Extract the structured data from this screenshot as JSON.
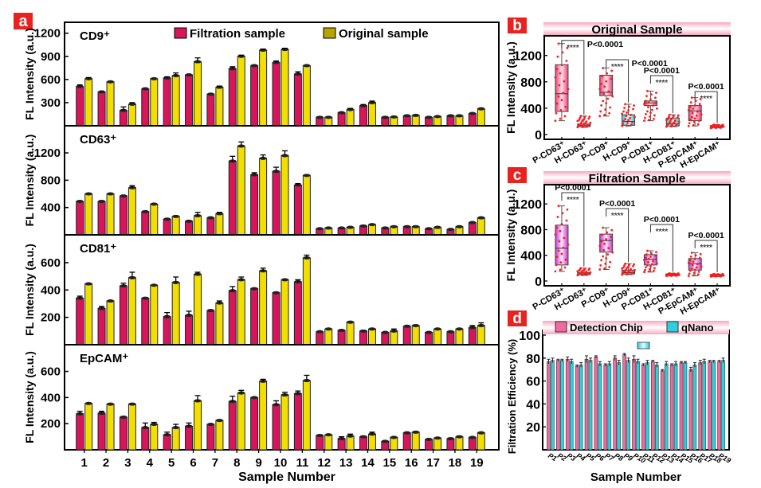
{
  "figure": {
    "panel_letters": [
      "a",
      "b",
      "c",
      "d"
    ],
    "panel_letter_color": "#e8231f"
  },
  "chart_data": [
    {
      "panel": "a",
      "type": "bar",
      "xlabel": "Sample Number",
      "ylabel": "FL Intensity (a.u.)",
      "categories": [
        "1",
        "2",
        "3",
        "4",
        "5",
        "6",
        "7",
        "8",
        "9",
        "10",
        "11",
        "12",
        "13",
        "14",
        "15",
        "16",
        "17",
        "18",
        "19"
      ],
      "legend": [
        {
          "name": "Filtration sample",
          "color": "#d8145a"
        },
        {
          "name": "Original sample",
          "color": "#f2de00"
        }
      ],
      "legend_position": "top",
      "subplots": [
        {
          "title": "CD9⁺",
          "ylim": [
            0,
            1300
          ],
          "yticks": [
            300,
            600,
            900,
            1200
          ],
          "series": [
            {
              "name": "Filtration sample",
              "values": [
                510,
                440,
                200,
                480,
                620,
                660,
                410,
                740,
                780,
                820,
                670,
                110,
                170,
                260,
                110,
                130,
                110,
                130,
                160
              ],
              "errors": [
                20,
                10,
                45,
                10,
                15,
                10,
                10,
                25,
                10,
                20,
                30,
                10,
                10,
                15,
                10,
                10,
                10,
                10,
                10
              ]
            },
            {
              "name": "Original sample",
              "values": [
                610,
                570,
                280,
                610,
                650,
                830,
                500,
                900,
                980,
                990,
                780,
                110,
                210,
                300,
                115,
                135,
                120,
                130,
                220
              ],
              "errors": [
                15,
                10,
                20,
                10,
                35,
                50,
                15,
                15,
                15,
                15,
                10,
                10,
                15,
                20,
                10,
                10,
                10,
                10,
                10
              ]
            }
          ]
        },
        {
          "title": "CD63⁺",
          "ylim": [
            0,
            1550
          ],
          "yticks": [
            400,
            800,
            1200
          ],
          "series": [
            {
              "name": "Filtration sample",
              "values": [
                490,
                490,
                570,
                340,
                230,
                200,
                250,
                1080,
                880,
                930,
                730,
                90,
                100,
                130,
                100,
                120,
                90,
                80,
                180
              ],
              "errors": [
                10,
                10,
                10,
                10,
                10,
                10,
                10,
                70,
                30,
                60,
                20,
                10,
                10,
                10,
                10,
                10,
                10,
                10,
                10
              ]
            },
            {
              "name": "Original sample",
              "values": [
                600,
                600,
                690,
                450,
                270,
                280,
                310,
                1300,
                1120,
                1160,
                870,
                100,
                110,
                150,
                120,
                120,
                110,
                120,
                250
              ],
              "errors": [
                10,
                10,
                30,
                10,
                10,
                50,
                20,
                60,
                50,
                70,
                10,
                10,
                10,
                10,
                10,
                10,
                10,
                10,
                10
              ]
            }
          ]
        },
        {
          "title": "CD81⁺",
          "ylim": [
            0,
            780
          ],
          "yticks": [
            200,
            400,
            600
          ],
          "series": [
            {
              "name": "Filtration sample",
              "values": [
                340,
                265,
                430,
                340,
                205,
                215,
                250,
                395,
                410,
                380,
                460,
                95,
                105,
                100,
                90,
                135,
                90,
                95,
                125
              ],
              "errors": [
                15,
                15,
                20,
                5,
                30,
                30,
                5,
                30,
                10,
                5,
                15,
                10,
                10,
                10,
                10,
                10,
                10,
                10,
                15
              ]
            },
            {
              "name": "Original sample",
              "values": [
                445,
                320,
                490,
                435,
                455,
                515,
                305,
                475,
                540,
                475,
                635,
                115,
                165,
                115,
                100,
                140,
                115,
                115,
                140
              ],
              "errors": [
                5,
                5,
                40,
                5,
                40,
                15,
                15,
                20,
                20,
                5,
                20,
                10,
                10,
                10,
                15,
                10,
                10,
                10,
                20
              ]
            }
          ]
        },
        {
          "title": "EpCAM⁺",
          "ylim": [
            0,
            780
          ],
          "yticks": [
            200,
            400,
            600
          ],
          "series": [
            {
              "name": "Filtration sample",
              "values": [
                275,
                280,
                250,
                170,
                115,
                180,
                195,
                370,
                400,
                345,
                430,
                110,
                85,
                100,
                65,
                130,
                80,
                85,
                95
              ],
              "errors": [
                20,
                15,
                10,
                35,
                20,
                25,
                5,
                40,
                5,
                30,
                20,
                10,
                15,
                10,
                10,
                10,
                10,
                10,
                10
              ]
            },
            {
              "name": "Original sample",
              "values": [
                355,
                350,
                350,
                195,
                170,
                375,
                225,
                435,
                525,
                420,
                530,
                115,
                105,
                120,
                95,
                135,
                90,
                100,
                130
              ],
              "errors": [
                10,
                10,
                10,
                15,
                25,
                40,
                5,
                20,
                15,
                20,
                40,
                10,
                15,
                15,
                10,
                10,
                10,
                10,
                10
              ]
            }
          ]
        }
      ]
    },
    {
      "panel": "b",
      "type": "box",
      "title": "Original Sample",
      "ylabel": "FL Intensity (a.u.)",
      "ylim": [
        0,
        1450
      ],
      "yticks": [
        0,
        400,
        800,
        1200
      ],
      "categories": [
        "P-CD63⁺",
        "H-CD63⁺",
        "P-CD9⁺",
        "H-CD9⁺",
        "P-CD81⁺",
        "H-CD81⁺",
        "P-EpCAM⁺",
        "H-EpCAM⁺"
      ],
      "boxes": [
        {
          "q1": 350,
          "median": 620,
          "q3": 1060,
          "min": 210,
          "max": 1380,
          "color": "#e8447a"
        },
        {
          "q1": 120,
          "median": 140,
          "q3": 160,
          "min": 110,
          "max": 280,
          "color": "#e8447a"
        },
        {
          "q1": 590,
          "median": 640,
          "q3": 900,
          "min": 280,
          "max": 1010,
          "color": "#e8447a"
        },
        {
          "q1": 140,
          "median": 200,
          "q3": 300,
          "min": 130,
          "max": 460,
          "color": "#2fc8d8"
        },
        {
          "q1": 440,
          "median": 480,
          "q3": 510,
          "min": 210,
          "max": 660,
          "color": "#e8447a"
        },
        {
          "q1": 130,
          "median": 160,
          "q3": 250,
          "min": 120,
          "max": 300,
          "color": "#2fc8d8"
        },
        {
          "q1": 210,
          "median": 360,
          "q3": 440,
          "min": 130,
          "max": 560,
          "color": "#e8447a"
        },
        {
          "q1": 110,
          "median": 120,
          "q3": 135,
          "min": 100,
          "max": 150,
          "color": "#e8447a"
        }
      ],
      "comparisons": [
        {
          "pair": [
            0,
            1
          ],
          "stars": "****",
          "p": "P<0.0001"
        },
        {
          "pair": [
            2,
            3
          ],
          "stars": "****",
          "p": "P<0.0001"
        },
        {
          "pair": [
            4,
            5
          ],
          "stars": "****",
          "p": "P<0.0001"
        },
        {
          "pair": [
            6,
            7
          ],
          "stars": "****",
          "p": "P<0.0001"
        }
      ]
    },
    {
      "panel": "c",
      "type": "box",
      "title": "Filtration Sample",
      "ylabel": "FL Intensity (a.u.)",
      "ylim": [
        0,
        1450
      ],
      "yticks": [
        0,
        400,
        800,
        1200
      ],
      "categories": [
        "P-CD63⁺",
        "H-CD63⁺",
        "P-CD9⁺",
        "H-CD9⁺",
        "P-CD81⁺",
        "H-CD81⁺",
        "P-EpCAM⁺",
        "H-EpCAM⁺"
      ],
      "boxes": [
        {
          "q1": 250,
          "median": 510,
          "q3": 870,
          "min": 150,
          "max": 1170,
          "color": "#c03cc8"
        },
        {
          "q1": 100,
          "median": 110,
          "q3": 130,
          "min": 90,
          "max": 200,
          "color": "#c03cc8"
        },
        {
          "q1": 450,
          "median": 630,
          "q3": 730,
          "min": 180,
          "max": 830,
          "color": "#c03cc8"
        },
        {
          "q1": 110,
          "median": 130,
          "q3": 170,
          "min": 100,
          "max": 270,
          "color": "#c03cc8"
        },
        {
          "q1": 250,
          "median": 340,
          "q3": 410,
          "min": 140,
          "max": 470,
          "color": "#c03cc8"
        },
        {
          "q1": 90,
          "median": 100,
          "q3": 110,
          "min": 80,
          "max": 120,
          "color": "#c03cc8"
        },
        {
          "q1": 170,
          "median": 270,
          "q3": 350,
          "min": 80,
          "max": 440,
          "color": "#c03cc8"
        },
        {
          "q1": 80,
          "median": 90,
          "q3": 100,
          "min": 70,
          "max": 110,
          "color": "#c03cc8"
        }
      ],
      "comparisons": [
        {
          "pair": [
            0,
            1
          ],
          "stars": "****",
          "p": "P<0.0001"
        },
        {
          "pair": [
            2,
            3
          ],
          "stars": "****",
          "p": "P<0.0001"
        },
        {
          "pair": [
            4,
            5
          ],
          "stars": "****",
          "p": "P<0.0001"
        },
        {
          "pair": [
            6,
            7
          ],
          "stars": "****",
          "p": "P<0.0001"
        }
      ]
    },
    {
      "panel": "d",
      "type": "bar",
      "xlabel": "Sample Number",
      "ylabel": "Filtration Efficiency (%)",
      "ylim": [
        0,
        100
      ],
      "yticks": [
        20,
        40,
        60,
        80,
        100
      ],
      "categories": [
        "P1",
        "P2",
        "P3",
        "P4",
        "P5",
        "P6",
        "P7",
        "P8",
        "P9",
        "P10",
        "P11",
        "P12",
        "P13",
        "P14",
        "P15",
        "P16",
        "P17",
        "P18",
        "P19"
      ],
      "legend": [
        {
          "name": "Detection Chip",
          "color": "#f06aa0"
        },
        {
          "name": "qNano",
          "color": "#2ed0e0"
        }
      ],
      "legend_position": "top",
      "series": [
        {
          "name": "Detection Chip",
          "values": [
            77,
            78,
            79,
            73,
            79,
            81,
            74,
            80,
            83,
            79,
            74,
            77,
            69,
            74,
            76,
            70,
            76,
            77,
            77
          ],
          "errors": [
            2,
            1,
            2,
            1,
            3,
            1,
            1,
            2,
            1,
            3,
            1,
            1,
            1,
            1,
            1,
            2,
            2,
            1,
            1
          ]
        },
        {
          "name": "qNano",
          "values": [
            78,
            78,
            77,
            74,
            78,
            75,
            75,
            76,
            78,
            77,
            76,
            74,
            75,
            75,
            76,
            74,
            77,
            77,
            78
          ],
          "errors": [
            2,
            1,
            2,
            2,
            2,
            2,
            2,
            2,
            2,
            2,
            2,
            2,
            2,
            2,
            1,
            2,
            2,
            1,
            2
          ]
        }
      ]
    }
  ]
}
